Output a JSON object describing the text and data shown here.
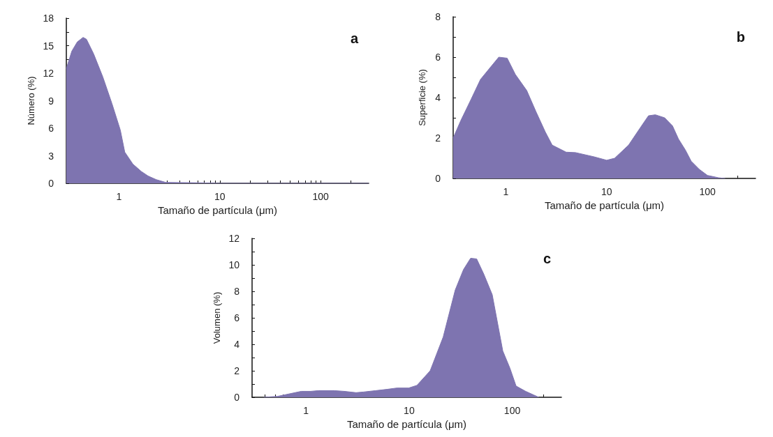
{
  "chart_data": [
    {
      "type": "area",
      "title": "a",
      "xlabel": "Tamaño de partícula (μm)",
      "ylabel": "Número (%)",
      "log": "x",
      "grid": false,
      "marker": "none",
      "xlim": [
        0.3,
        300
      ],
      "xticks": [
        {
          "value": 0.4,
          "label": null
        },
        {
          "value": 0.5,
          "label": null
        },
        {
          "value": 0.6,
          "label": null
        },
        {
          "value": 0.7,
          "label": null
        },
        {
          "value": 0.8,
          "label": null
        },
        {
          "value": 0.9,
          "label": null
        },
        1,
        {
          "value": 2,
          "label": null
        },
        {
          "value": 3,
          "label": null
        },
        {
          "value": 4,
          "label": null
        },
        {
          "value": 5,
          "label": null
        },
        {
          "value": 6,
          "label": null
        },
        {
          "value": 7,
          "label": null
        },
        {
          "value": 8,
          "label": null
        },
        {
          "value": 9,
          "label": null
        },
        10,
        {
          "value": 20,
          "label": null
        },
        {
          "value": 30,
          "label": null
        },
        {
          "value": 40,
          "label": null
        },
        {
          "value": 50,
          "label": null
        },
        {
          "value": 60,
          "label": null
        },
        {
          "value": 70,
          "label": null
        },
        {
          "value": 80,
          "label": null
        },
        {
          "value": 90,
          "label": null
        },
        100,
        {
          "value": 200,
          "label": null
        }
      ],
      "ylim": [
        0,
        18
      ],
      "yticks": [
        0,
        {
          "value": 1.5,
          "label": null
        },
        3,
        {
          "value": 4.5,
          "label": null
        },
        6,
        {
          "value": 7.5,
          "label": null
        },
        9,
        {
          "value": 10.5,
          "label": null
        },
        12,
        {
          "value": 13.5,
          "label": null
        },
        15,
        {
          "value": 16.5,
          "label": null
        },
        18
      ],
      "series": [
        {
          "color": "#7e74b0",
          "x": [
            0.3,
            0.34,
            0.385,
            0.44,
            0.475,
            0.56,
            0.69,
            0.85,
            1.03,
            1.14,
            1.37,
            1.66,
            1.94,
            2.34,
            2.9,
            6.4,
            10,
            300
          ],
          "values": [
            12.5,
            14.4,
            15.4,
            15.9,
            15.7,
            14.1,
            11.6,
            8.7,
            5.8,
            3.4,
            2.1,
            1.3,
            0.8,
            0.4,
            0.1,
            0.05,
            0,
            0
          ]
        }
      ]
    },
    {
      "type": "area",
      "title": "b",
      "xlabel": "Tamaño de partícula (μm)",
      "ylabel": "Superficie (%)",
      "log": "x",
      "grid": false,
      "marker": "none",
      "xlim": [
        0.3,
        300
      ],
      "xticks": [
        {
          "value": 0.4,
          "label": null
        },
        {
          "value": 0.5,
          "label": null
        },
        {
          "value": 0.6,
          "label": null
        },
        {
          "value": 0.7,
          "label": null
        },
        {
          "value": 0.8,
          "label": null
        },
        {
          "value": 0.9,
          "label": null
        },
        1,
        {
          "value": 2,
          "label": null
        },
        {
          "value": 3,
          "label": null
        },
        {
          "value": 4,
          "label": null
        },
        {
          "value": 5,
          "label": null
        },
        {
          "value": 6,
          "label": null
        },
        {
          "value": 7,
          "label": null
        },
        {
          "value": 8,
          "label": null
        },
        {
          "value": 9,
          "label": null
        },
        10,
        {
          "value": 20,
          "label": null
        },
        {
          "value": 30,
          "label": null
        },
        {
          "value": 40,
          "label": null
        },
        {
          "value": 50,
          "label": null
        },
        {
          "value": 60,
          "label": null
        },
        {
          "value": 70,
          "label": null
        },
        {
          "value": 80,
          "label": null
        },
        {
          "value": 90,
          "label": null
        },
        100,
        {
          "value": 200,
          "label": null
        }
      ],
      "ylim": [
        0,
        8
      ],
      "yticks": [
        0,
        {
          "value": 1,
          "label": null
        },
        2,
        {
          "value": 3,
          "label": null
        },
        4,
        {
          "value": 5,
          "label": null
        },
        6,
        {
          "value": 7,
          "label": null
        },
        8
      ],
      "series": [
        {
          "color": "#7e74b0",
          "x": [
            0.3,
            0.356,
            0.45,
            0.56,
            0.73,
            0.85,
            1.03,
            1.24,
            1.61,
            1.99,
            2.46,
            2.88,
            3.96,
            4.9,
            7.5,
            10,
            12,
            16.5,
            21.5,
            26,
            30.4,
            37.6,
            45,
            51.6,
            60.5,
            69,
            83,
            100,
            130,
            150
          ],
          "values": [
            2.0,
            2.85,
            3.9,
            4.9,
            5.6,
            6.0,
            5.95,
            5.15,
            4.35,
            3.3,
            2.3,
            1.65,
            1.3,
            1.28,
            1.07,
            0.9,
            1.0,
            1.65,
            2.5,
            3.1,
            3.15,
            3.0,
            2.6,
            1.95,
            1.4,
            0.85,
            0.45,
            0.15,
            0.03,
            0
          ]
        }
      ]
    },
    {
      "type": "area",
      "title": "c",
      "xlabel": "Tamaño de partícula (μm)",
      "ylabel": "Volumen (%)",
      "log": "x",
      "grid": false,
      "marker": "none",
      "xlim": [
        0.3,
        300
      ],
      "xticks": [
        {
          "value": 0.4,
          "label": null
        },
        {
          "value": 0.5,
          "label": null
        },
        {
          "value": 0.6,
          "label": null
        },
        {
          "value": 0.7,
          "label": null
        },
        {
          "value": 0.8,
          "label": null
        },
        {
          "value": 0.9,
          "label": null
        },
        1,
        {
          "value": 2,
          "label": null
        },
        {
          "value": 3,
          "label": null
        },
        {
          "value": 4,
          "label": null
        },
        {
          "value": 5,
          "label": null
        },
        {
          "value": 6,
          "label": null
        },
        {
          "value": 7,
          "label": null
        },
        {
          "value": 8,
          "label": null
        },
        {
          "value": 9,
          "label": null
        },
        10,
        {
          "value": 20,
          "label": null
        },
        {
          "value": 30,
          "label": null
        },
        {
          "value": 40,
          "label": null
        },
        {
          "value": 50,
          "label": null
        },
        {
          "value": 60,
          "label": null
        },
        {
          "value": 70,
          "label": null
        },
        {
          "value": 80,
          "label": null
        },
        {
          "value": 90,
          "label": null
        },
        100,
        {
          "value": 200,
          "label": null
        }
      ],
      "ylim": [
        0,
        12
      ],
      "yticks": [
        0,
        {
          "value": 1,
          "label": null
        },
        2,
        {
          "value": 3,
          "label": null
        },
        4,
        {
          "value": 5,
          "label": null
        },
        6,
        {
          "value": 7,
          "label": null
        },
        8,
        {
          "value": 9,
          "label": null
        },
        10,
        {
          "value": 11,
          "label": null
        },
        12
      ],
      "series": [
        {
          "color": "#7e74b0",
          "x": [
            0.39,
            0.53,
            0.73,
            0.9,
            1.11,
            1.31,
            1.9,
            2.35,
            3.06,
            3.6,
            4.7,
            6.1,
            7.6,
            9.9,
            11.9,
            16,
            21.4,
            28,
            33.7,
            39.5,
            45.2,
            53,
            64,
            81,
            95,
            109,
            135,
            181
          ],
          "values": [
            0,
            0.07,
            0.3,
            0.45,
            0.45,
            0.5,
            0.5,
            0.45,
            0.35,
            0.4,
            0.5,
            0.6,
            0.7,
            0.7,
            0.9,
            2.0,
            4.55,
            8.1,
            9.65,
            10.5,
            10.45,
            9.3,
            7.75,
            3.5,
            2.2,
            0.85,
            0.45,
            0
          ]
        }
      ]
    }
  ]
}
